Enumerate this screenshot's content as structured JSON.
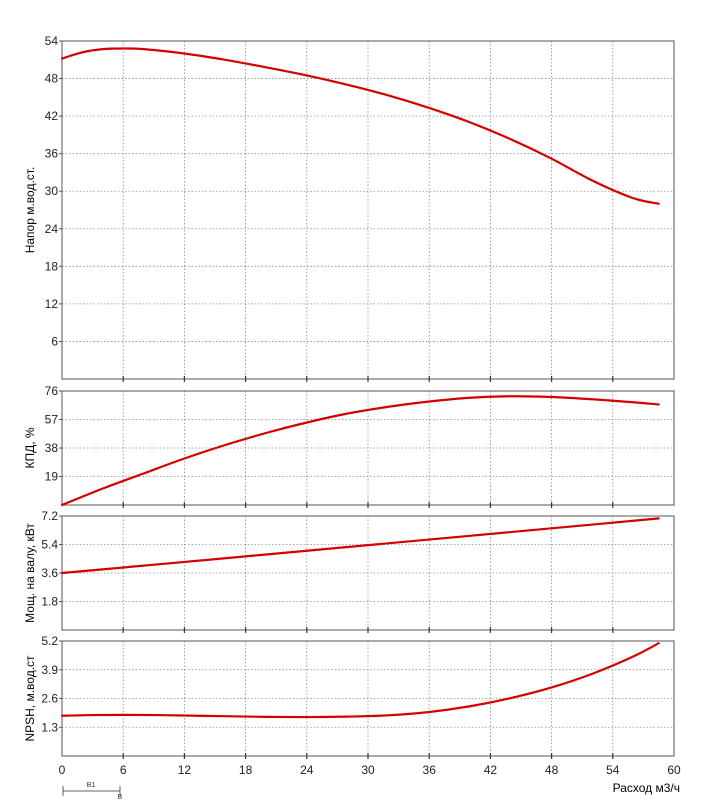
{
  "chart_data": [
    {
      "type": "line",
      "ylabel": "Напор м.вод.ст.",
      "xlim": [
        0,
        60
      ],
      "ylim": [
        0,
        54
      ],
      "y_ticks": [
        "6",
        "12",
        "18",
        "24",
        "30",
        "36",
        "42",
        "48",
        "54"
      ],
      "grid": true,
      "series": [
        {
          "color": "#d40000",
          "x": [
            0,
            2,
            4,
            6,
            8,
            12,
            16,
            20,
            24,
            28,
            32,
            36,
            40,
            44,
            48,
            52,
            56,
            58.5
          ],
          "y": [
            51.2,
            52.2,
            52.7,
            52.8,
            52.7,
            52.0,
            51.0,
            49.8,
            48.5,
            47.0,
            45.3,
            43.3,
            41.0,
            38.3,
            35.2,
            31.7,
            28.9,
            28.0
          ]
        }
      ]
    },
    {
      "type": "line",
      "ylabel": "КПД, %",
      "xlim": [
        0,
        60
      ],
      "ylim": [
        0,
        76
      ],
      "y_ticks": [
        "19",
        "38",
        "57",
        "76"
      ],
      "grid": true,
      "series": [
        {
          "color": "#d40000",
          "x": [
            0,
            4,
            8,
            12,
            16,
            20,
            24,
            28,
            32,
            36,
            40,
            44,
            48,
            52,
            56,
            58.5
          ],
          "y": [
            0,
            11,
            21,
            31,
            40,
            48,
            55,
            61,
            65.5,
            69,
            71.5,
            72.5,
            72,
            70.5,
            68.5,
            67
          ]
        }
      ]
    },
    {
      "type": "line",
      "ylabel": "Мощ. на валу, кВт",
      "xlim": [
        0,
        60
      ],
      "ylim": [
        0,
        7.2
      ],
      "y_ticks": [
        "1.8",
        "3.6",
        "5.4",
        "7.2"
      ],
      "grid": true,
      "series": [
        {
          "color": "#d40000",
          "x": [
            0,
            10,
            20,
            30,
            40,
            50,
            58.5
          ],
          "y": [
            3.6,
            4.18,
            4.77,
            5.36,
            5.95,
            6.54,
            7.05
          ]
        }
      ]
    },
    {
      "type": "line",
      "ylabel": "NPSH, м.вод.ст",
      "xlabel": "Расход м3/ч",
      "xlim": [
        0,
        60
      ],
      "ylim": [
        0,
        5.2
      ],
      "y_ticks": [
        "1.3",
        "2.6",
        "3.9",
        "5.2"
      ],
      "x_ticks": [
        "0",
        "6",
        "12",
        "18",
        "24",
        "30",
        "36",
        "42",
        "48",
        "54",
        "60"
      ],
      "grid": true,
      "series": [
        {
          "color": "#d40000",
          "x": [
            0,
            3,
            6,
            9,
            12,
            16,
            20,
            24,
            28,
            32,
            36,
            40,
            44,
            48,
            52,
            56,
            58.5
          ],
          "y": [
            1.82,
            1.85,
            1.86,
            1.85,
            1.83,
            1.8,
            1.77,
            1.76,
            1.78,
            1.84,
            1.99,
            2.25,
            2.62,
            3.1,
            3.72,
            4.5,
            5.1
          ]
        }
      ]
    }
  ],
  "footer": {
    "marker_label": "B1",
    "marker_sub": "B"
  }
}
